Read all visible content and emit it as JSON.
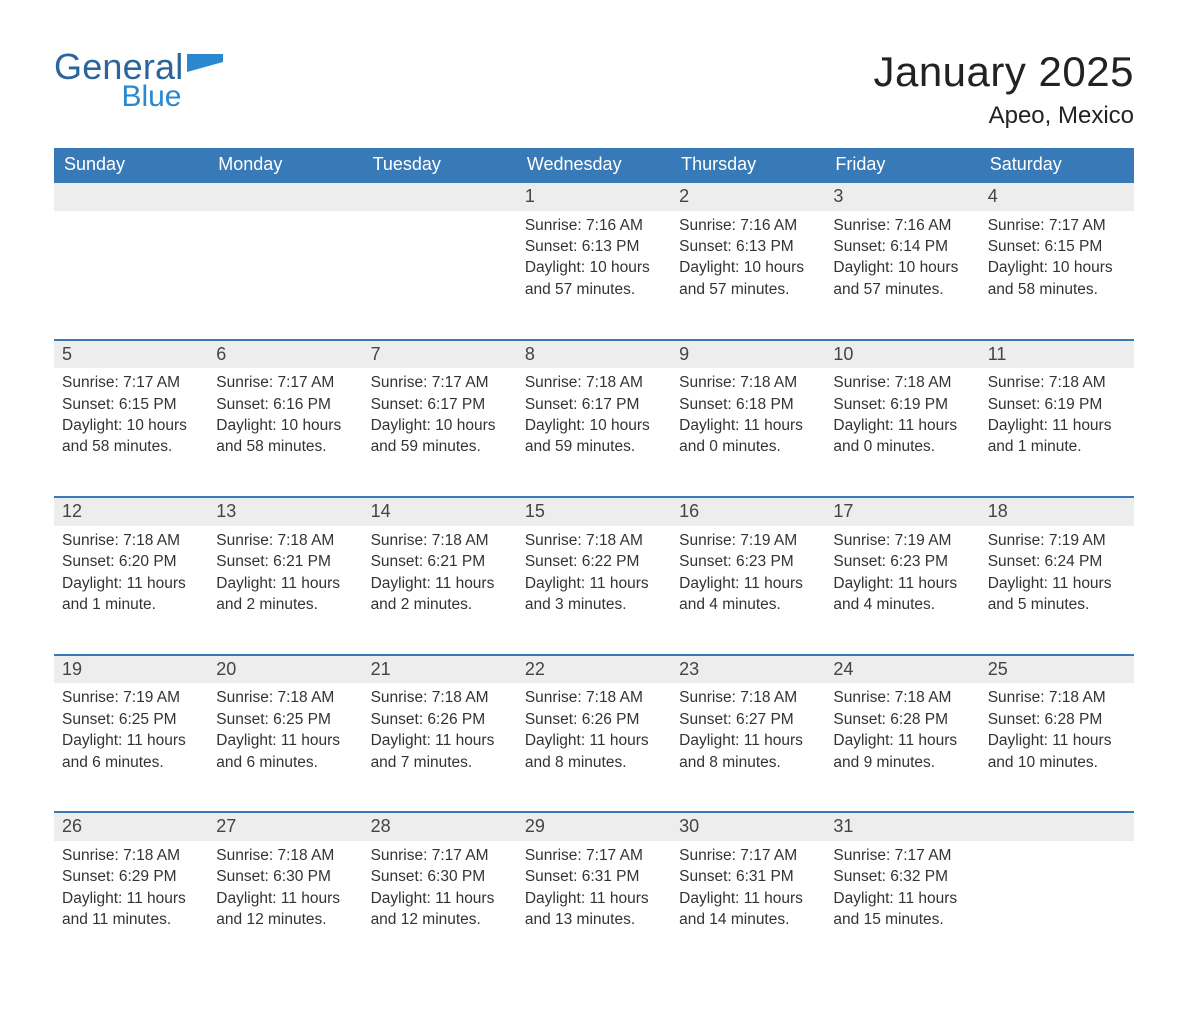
{
  "logo": {
    "word1": "General",
    "word2": "Blue",
    "shape_color": "#2a88d0",
    "word1_color": "#2a659c",
    "word2_color": "#2a88d0"
  },
  "title": "January 2025",
  "location": "Apeo, Mexico",
  "colors": {
    "header_bg": "#3879b7",
    "header_fg": "#ffffff",
    "daynum_bg": "#ededed",
    "daynum_border": "#3879b7",
    "text": "#333333",
    "page_bg": "#ffffff"
  },
  "fonts": {
    "title_size_pt": 42,
    "location_size_pt": 24,
    "header_size_pt": 18,
    "daynum_size_pt": 18,
    "cell_size_pt": 15.5,
    "family": "Arial"
  },
  "calendar": {
    "type": "table",
    "columns": [
      "Sunday",
      "Monday",
      "Tuesday",
      "Wednesday",
      "Thursday",
      "Friday",
      "Saturday"
    ],
    "weeks": [
      [
        null,
        null,
        null,
        {
          "day": "1",
          "sunrise": "7:16 AM",
          "sunset": "6:13 PM",
          "daylight": "10 hours and 57 minutes."
        },
        {
          "day": "2",
          "sunrise": "7:16 AM",
          "sunset": "6:13 PM",
          "daylight": "10 hours and 57 minutes."
        },
        {
          "day": "3",
          "sunrise": "7:16 AM",
          "sunset": "6:14 PM",
          "daylight": "10 hours and 57 minutes."
        },
        {
          "day": "4",
          "sunrise": "7:17 AM",
          "sunset": "6:15 PM",
          "daylight": "10 hours and 58 minutes."
        }
      ],
      [
        {
          "day": "5",
          "sunrise": "7:17 AM",
          "sunset": "6:15 PM",
          "daylight": "10 hours and 58 minutes."
        },
        {
          "day": "6",
          "sunrise": "7:17 AM",
          "sunset": "6:16 PM",
          "daylight": "10 hours and 58 minutes."
        },
        {
          "day": "7",
          "sunrise": "7:17 AM",
          "sunset": "6:17 PM",
          "daylight": "10 hours and 59 minutes."
        },
        {
          "day": "8",
          "sunrise": "7:18 AM",
          "sunset": "6:17 PM",
          "daylight": "10 hours and 59 minutes."
        },
        {
          "day": "9",
          "sunrise": "7:18 AM",
          "sunset": "6:18 PM",
          "daylight": "11 hours and 0 minutes."
        },
        {
          "day": "10",
          "sunrise": "7:18 AM",
          "sunset": "6:19 PM",
          "daylight": "11 hours and 0 minutes."
        },
        {
          "day": "11",
          "sunrise": "7:18 AM",
          "sunset": "6:19 PM",
          "daylight": "11 hours and 1 minute."
        }
      ],
      [
        {
          "day": "12",
          "sunrise": "7:18 AM",
          "sunset": "6:20 PM",
          "daylight": "11 hours and 1 minute."
        },
        {
          "day": "13",
          "sunrise": "7:18 AM",
          "sunset": "6:21 PM",
          "daylight": "11 hours and 2 minutes."
        },
        {
          "day": "14",
          "sunrise": "7:18 AM",
          "sunset": "6:21 PM",
          "daylight": "11 hours and 2 minutes."
        },
        {
          "day": "15",
          "sunrise": "7:18 AM",
          "sunset": "6:22 PM",
          "daylight": "11 hours and 3 minutes."
        },
        {
          "day": "16",
          "sunrise": "7:19 AM",
          "sunset": "6:23 PM",
          "daylight": "11 hours and 4 minutes."
        },
        {
          "day": "17",
          "sunrise": "7:19 AM",
          "sunset": "6:23 PM",
          "daylight": "11 hours and 4 minutes."
        },
        {
          "day": "18",
          "sunrise": "7:19 AM",
          "sunset": "6:24 PM",
          "daylight": "11 hours and 5 minutes."
        }
      ],
      [
        {
          "day": "19",
          "sunrise": "7:19 AM",
          "sunset": "6:25 PM",
          "daylight": "11 hours and 6 minutes."
        },
        {
          "day": "20",
          "sunrise": "7:18 AM",
          "sunset": "6:25 PM",
          "daylight": "11 hours and 6 minutes."
        },
        {
          "day": "21",
          "sunrise": "7:18 AM",
          "sunset": "6:26 PM",
          "daylight": "11 hours and 7 minutes."
        },
        {
          "day": "22",
          "sunrise": "7:18 AM",
          "sunset": "6:26 PM",
          "daylight": "11 hours and 8 minutes."
        },
        {
          "day": "23",
          "sunrise": "7:18 AM",
          "sunset": "6:27 PM",
          "daylight": "11 hours and 8 minutes."
        },
        {
          "day": "24",
          "sunrise": "7:18 AM",
          "sunset": "6:28 PM",
          "daylight": "11 hours and 9 minutes."
        },
        {
          "day": "25",
          "sunrise": "7:18 AM",
          "sunset": "6:28 PM",
          "daylight": "11 hours and 10 minutes."
        }
      ],
      [
        {
          "day": "26",
          "sunrise": "7:18 AM",
          "sunset": "6:29 PM",
          "daylight": "11 hours and 11 minutes."
        },
        {
          "day": "27",
          "sunrise": "7:18 AM",
          "sunset": "6:30 PM",
          "daylight": "11 hours and 12 minutes."
        },
        {
          "day": "28",
          "sunrise": "7:17 AM",
          "sunset": "6:30 PM",
          "daylight": "11 hours and 12 minutes."
        },
        {
          "day": "29",
          "sunrise": "7:17 AM",
          "sunset": "6:31 PM",
          "daylight": "11 hours and 13 minutes."
        },
        {
          "day": "30",
          "sunrise": "7:17 AM",
          "sunset": "6:31 PM",
          "daylight": "11 hours and 14 minutes."
        },
        {
          "day": "31",
          "sunrise": "7:17 AM",
          "sunset": "6:32 PM",
          "daylight": "11 hours and 15 minutes."
        },
        null
      ]
    ],
    "labels": {
      "sunrise": "Sunrise:",
      "sunset": "Sunset:",
      "daylight": "Daylight:"
    }
  }
}
